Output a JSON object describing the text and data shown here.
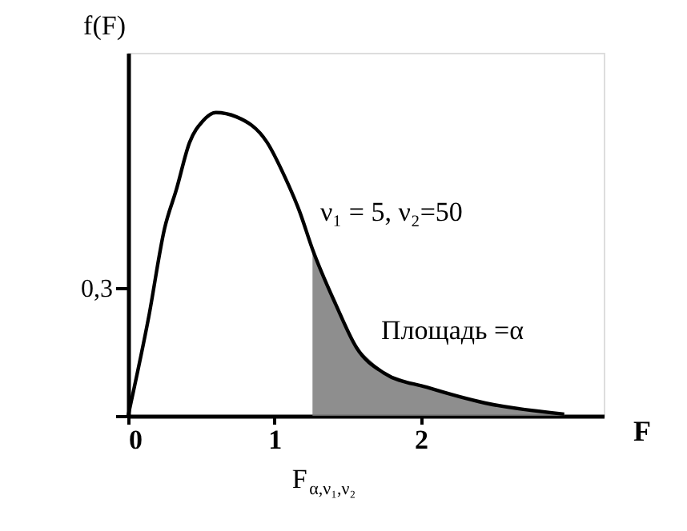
{
  "chart_data": {
    "type": "line",
    "xlabel": "F",
    "ylabel": "f(F)",
    "xlim": [
      0,
      3.25
    ],
    "ylim": [
      0,
      0.85
    ],
    "xticks": [
      0,
      1,
      2
    ],
    "yticks": [
      {
        "value": 0,
        "label": null
      },
      {
        "value": 0.3,
        "label": "0,3"
      }
    ],
    "grid": false,
    "series": [
      {
        "type": "area",
        "color": "#7a7a7a",
        "x": [
          1.26,
          1.42,
          1.56,
          1.75,
          2.04,
          2.44,
          2.98
        ],
        "values": [
          0.39,
          0.26,
          0.16,
          0.1,
          0.067,
          0.03,
          0.004
        ]
      },
      {
        "color": "#000000",
        "x": [
          0,
          0.14,
          0.25,
          0.33,
          0.42,
          0.51,
          0.6,
          0.74,
          0.95,
          1.07,
          1.17,
          1.26,
          1.42,
          1.56,
          1.75,
          2.04,
          2.44,
          2.98
        ],
        "values": [
          0,
          0.23,
          0.44,
          0.53,
          0.64,
          0.69,
          0.71,
          0.7,
          0.64,
          0.56,
          0.48,
          0.39,
          0.26,
          0.16,
          0.1,
          0.067,
          0.03,
          0.004
        ]
      }
    ],
    "annotations": [
      "ν₁ = 5, ν₂=50",
      "Площадь =α",
      {
        "text": "F$_{α,ν₁,ν₂}$",
        "x": 1.26,
        "y": 0
      }
    ]
  }
}
